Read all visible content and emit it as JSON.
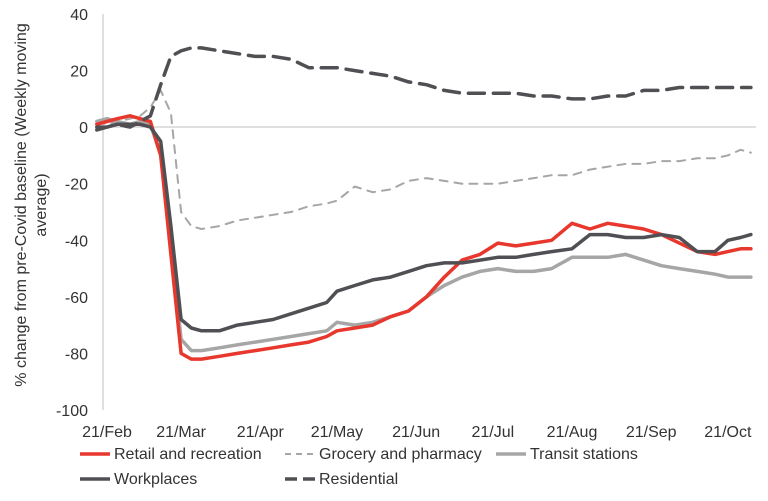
{
  "chart_data": {
    "type": "line",
    "title": "",
    "ylabel_lines": [
      "% change from pre-Covid baseline (Weekly moving",
      "average)"
    ],
    "xlabel": "",
    "ylim": [
      -100,
      40
    ],
    "yticks": [
      40,
      20,
      0,
      -20,
      -40,
      -60,
      -80,
      -100
    ],
    "x_tick_labels": [
      "21/Feb",
      "21/Mar",
      "21/Apr",
      "21/May",
      "21/Jun",
      "21/Jul",
      "21/Aug",
      "21/Sep",
      "21/Oct"
    ],
    "x": [
      "2020-02-17",
      "2020-02-21",
      "2020-02-25",
      "2020-03-01",
      "2020-03-05",
      "2020-03-09",
      "2020-03-13",
      "2020-03-17",
      "2020-03-21",
      "2020-03-25",
      "2020-03-29",
      "2020-04-05",
      "2020-04-12",
      "2020-04-19",
      "2020-04-26",
      "2020-05-03",
      "2020-05-10",
      "2020-05-17",
      "2020-05-21",
      "2020-05-28",
      "2020-06-04",
      "2020-06-11",
      "2020-06-18",
      "2020-06-25",
      "2020-07-02",
      "2020-07-09",
      "2020-07-16",
      "2020-07-23",
      "2020-07-30",
      "2020-08-06",
      "2020-08-13",
      "2020-08-21",
      "2020-08-28",
      "2020-09-04",
      "2020-09-11",
      "2020-09-18",
      "2020-09-25",
      "2020-10-02",
      "2020-10-09",
      "2020-10-16",
      "2020-10-21",
      "2020-10-26",
      "2020-10-30"
    ],
    "grid": false,
    "legend_position": "bottom",
    "series": [
      {
        "name": "Retail and recreation",
        "color": "#e8372d",
        "dash": "solid",
        "values": [
          1,
          2,
          3,
          4,
          3,
          2,
          -10,
          -45,
          -80,
          -82,
          -82,
          -81,
          -80,
          -79,
          -78,
          -77,
          -76,
          -74,
          -72,
          -71,
          -70,
          -67,
          -65,
          -60,
          -53,
          -47,
          -45,
          -41,
          -42,
          -41,
          -40,
          -34,
          -36,
          -34,
          -35,
          -36,
          -38,
          -41,
          -44,
          -45,
          -44,
          -43,
          -43
        ]
      },
      {
        "name": "Grocery and pharmacy",
        "color": "#a6a6a6",
        "dash": "dashed",
        "values": [
          2,
          1,
          2,
          3,
          4,
          7,
          13,
          5,
          -30,
          -35,
          -36,
          -35,
          -33,
          -32,
          -31,
          -30,
          -28,
          -27,
          -26,
          -21,
          -23,
          -22,
          -19,
          -18,
          -19,
          -20,
          -20,
          -20,
          -19,
          -18,
          -17,
          -17,
          -15,
          -14,
          -13,
          -13,
          -12,
          -12,
          -11,
          -11,
          -10,
          -8,
          -9
        ]
      },
      {
        "name": "Transit stations",
        "color": "#a6a6a6",
        "dash": "solid",
        "values": [
          2,
          3,
          2,
          1,
          2,
          1,
          -10,
          -40,
          -75,
          -79,
          -79,
          -78,
          -77,
          -76,
          -75,
          -74,
          -73,
          -72,
          -69,
          -70,
          -69,
          -67,
          -65,
          -60,
          -56,
          -53,
          -51,
          -50,
          -51,
          -51,
          -50,
          -46,
          -46,
          -46,
          -45,
          -47,
          -49,
          -50,
          -51,
          -52,
          -53,
          -53,
          -53
        ]
      },
      {
        "name": "Workplaces",
        "color": "#505054",
        "dash": "solid",
        "values": [
          -1,
          0,
          1,
          1,
          1,
          0,
          -5,
          -35,
          -68,
          -71,
          -72,
          -72,
          -70,
          -69,
          -68,
          -66,
          -64,
          -62,
          -58,
          -56,
          -54,
          -53,
          -51,
          -49,
          -48,
          -48,
          -47,
          -46,
          -46,
          -45,
          -44,
          -43,
          -38,
          -38,
          -39,
          -39,
          -38,
          -39,
          -44,
          -44,
          -40,
          -39,
          -38
        ]
      },
      {
        "name": "Residential",
        "color": "#505054",
        "dash": "dashed",
        "values": [
          0,
          0,
          1,
          0,
          2,
          4,
          15,
          25,
          27,
          28,
          28,
          27,
          26,
          25,
          25,
          24,
          21,
          21,
          21,
          20,
          19,
          18,
          16,
          15,
          13,
          12,
          12,
          12,
          12,
          11,
          11,
          10,
          10,
          11,
          11,
          13,
          13,
          14,
          14,
          14,
          14,
          14,
          14
        ]
      }
    ]
  }
}
